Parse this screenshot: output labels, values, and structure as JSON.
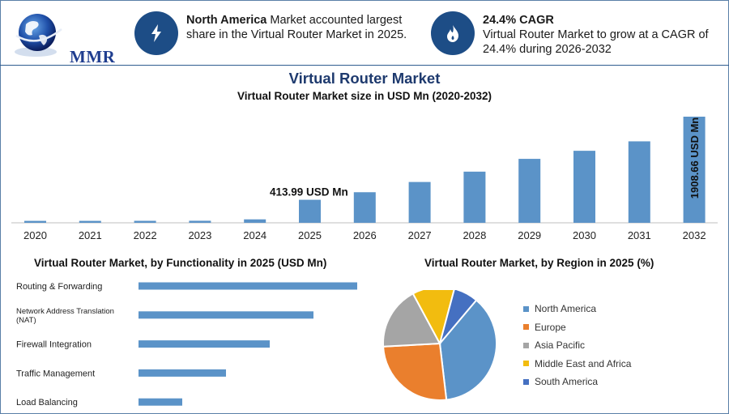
{
  "brand": {
    "logo_text": "MMR"
  },
  "info": {
    "region_highlight": "North America",
    "region_text": " Market accounted largest share in the Virtual Router Market in 2025.",
    "cagr_title": "24.4% CAGR",
    "cagr_text": "Virtual Router Market to grow at a CAGR of 24.4% during 2026-2032",
    "bolt_icon": "lightning-icon",
    "flame_icon": "flame-icon"
  },
  "colors": {
    "accent": "#1d4d86",
    "bar": "#5b93c8",
    "title": "#1e3a6e"
  },
  "chart_data": [
    {
      "type": "bar",
      "title": "Virtual Router Market",
      "subtitle": "Virtual Router Market size in USD Mn (2020-2032)",
      "categories": [
        "2020",
        "2021",
        "2022",
        "2023",
        "2024",
        "2025",
        "2026",
        "2027",
        "2028",
        "2029",
        "2030",
        "2031",
        "2032"
      ],
      "values": [
        35,
        35,
        36,
        37,
        62,
        413.99,
        550,
        734,
        920,
        1150,
        1295,
        1465,
        1908.66
      ],
      "ylim": [
        0,
        1908.66
      ],
      "annotations": [
        {
          "category": "2025",
          "text": "413.99 USD Mn"
        },
        {
          "category": "2032",
          "text": "1908.66 USD Mn"
        }
      ]
    },
    {
      "type": "bar",
      "orientation": "horizontal",
      "title": "Virtual Router Market, by Functionality in 2025 (USD Mn)",
      "categories": [
        "Routing & Forwarding",
        "Network Address Translation (NAT)",
        "Firewall Integration",
        "Traffic Management",
        "Load Balancing"
      ],
      "values": [
        100,
        80,
        60,
        40,
        20
      ]
    },
    {
      "type": "pie",
      "title": "Virtual Router Market, by Region in 2025 (%)",
      "categories": [
        "North America",
        "Europe",
        "Asia Pacific",
        "Middle East and Africa",
        "South America"
      ],
      "values": [
        37,
        26,
        18,
        12,
        7
      ],
      "colors": [
        "#5b93c8",
        "#ea7f2d",
        "#a5a5a5",
        "#f2bc0f",
        "#4570c1"
      ],
      "legend": "right"
    }
  ]
}
